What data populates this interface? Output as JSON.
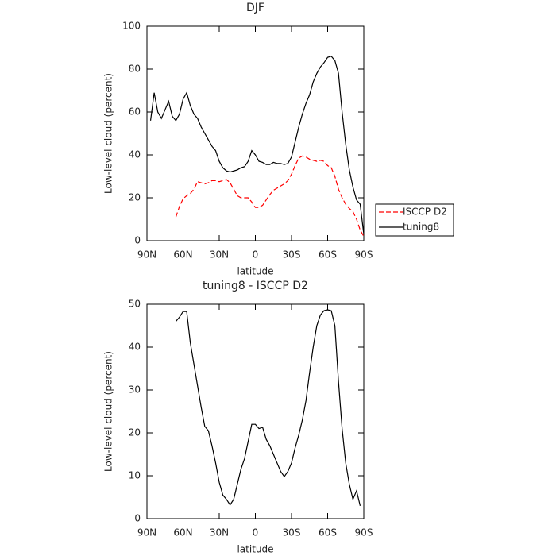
{
  "chart_data": [
    {
      "type": "line",
      "title": "DJF",
      "x_label": "latitude",
      "y_label": "Low-level cloud (percent)",
      "x": [
        87,
        84,
        81,
        78,
        75,
        72,
        69,
        66,
        63,
        60,
        57,
        54,
        51,
        48,
        45,
        42,
        39,
        36,
        33,
        30,
        27,
        24,
        21,
        18,
        15,
        12,
        9,
        6,
        3,
        0,
        -3,
        -6,
        -9,
        -12,
        -15,
        -18,
        -21,
        -24,
        -27,
        -30,
        -33,
        -36,
        -39,
        -42,
        -45,
        -48,
        -51,
        -54,
        -57,
        -60,
        -63,
        -66,
        -69,
        -72,
        -75,
        -78,
        -81,
        -84,
        -87,
        -90
      ],
      "series": [
        {
          "name": "ISCCP D2",
          "color": "#ff0000",
          "line_style": "dashed",
          "values": [
            null,
            null,
            null,
            null,
            null,
            null,
            null,
            11,
            16,
            19.5,
            21,
            22,
            24,
            27.5,
            27,
            26.5,
            27,
            28,
            28,
            27.5,
            28,
            28.5,
            27,
            24,
            21,
            20,
            20,
            20,
            18,
            15.5,
            15.5,
            16.5,
            19,
            21.5,
            23.5,
            24.5,
            25.5,
            26.5,
            28,
            31,
            35,
            38.5,
            39.5,
            39,
            38,
            37.5,
            37,
            37.5,
            37,
            35,
            34,
            30,
            24,
            20,
            17,
            15,
            13.5,
            10,
            5,
            2
          ]
        },
        {
          "name": "tuning8",
          "color": "#000000",
          "line_style": "solid",
          "values": [
            56,
            69,
            60,
            57,
            61,
            65,
            58,
            56,
            59,
            66,
            69,
            63,
            59,
            57,
            53,
            50,
            47,
            44,
            42,
            37,
            34,
            32.5,
            32,
            32.5,
            33,
            34,
            34.5,
            37,
            42,
            40,
            37,
            36.5,
            35.5,
            35.5,
            36.5,
            36,
            36,
            35.5,
            36,
            39,
            46,
            53,
            59,
            64,
            68,
            74,
            78,
            81,
            83,
            85.5,
            86,
            84,
            78,
            60,
            45,
            33,
            25,
            19,
            17,
            3
          ]
        }
      ],
      "xlim": [
        90,
        -90
      ],
      "xticks": [
        {
          "value": 90,
          "label": "90N"
        },
        {
          "value": 60,
          "label": "60N"
        },
        {
          "value": 30,
          "label": "30N"
        },
        0,
        {
          "value": -30,
          "label": "30S"
        },
        {
          "value": -60,
          "label": "60S"
        },
        {
          "value": -90,
          "label": "90S"
        }
      ],
      "ylim": [
        0,
        100
      ],
      "yticks": [
        0,
        20,
        40,
        60,
        80,
        100
      ],
      "grid": false,
      "legend": "outside-right"
    },
    {
      "type": "line",
      "title": "tuning8 - ISCCP D2",
      "x_label": "latitude",
      "y_label": "Low-level cloud (percent)",
      "x": [
        87,
        84,
        81,
        78,
        75,
        72,
        69,
        66,
        63,
        60,
        57,
        54,
        51,
        48,
        45,
        42,
        39,
        36,
        33,
        30,
        27,
        24,
        21,
        18,
        15,
        12,
        9,
        6,
        3,
        0,
        -3,
        -6,
        -9,
        -12,
        -15,
        -18,
        -21,
        -24,
        -27,
        -30,
        -33,
        -36,
        -39,
        -42,
        -45,
        -48,
        -51,
        -54,
        -57,
        -60,
        -63,
        -66,
        -69,
        -72,
        -75,
        -78,
        -81,
        -84,
        -87,
        -90
      ],
      "series": [
        {
          "color": "#000000",
          "line_style": "solid",
          "values": [
            null,
            null,
            null,
            null,
            null,
            null,
            null,
            46,
            47,
            48.3,
            48.3,
            41,
            36,
            31,
            26,
            21.5,
            20.5,
            17,
            13,
            8.5,
            5.5,
            4.5,
            3.2,
            4.5,
            8,
            11.5,
            14,
            18,
            22,
            22,
            21,
            21.3,
            18.5,
            17,
            15,
            13,
            11,
            9.8,
            11,
            13,
            16.5,
            19.5,
            23,
            27.5,
            34,
            40,
            45,
            47.5,
            48.5,
            48.7,
            48.5,
            45,
            32,
            21,
            13,
            8,
            4.5,
            6.5,
            3,
            null
          ]
        }
      ],
      "xlim": [
        90,
        -90
      ],
      "xticks": [
        {
          "value": 90,
          "label": "90N"
        },
        {
          "value": 60,
          "label": "60N"
        },
        {
          "value": 30,
          "label": "30N"
        },
        0,
        {
          "value": -30,
          "label": "30S"
        },
        {
          "value": -60,
          "label": "60S"
        },
        {
          "value": -90,
          "label": "90S"
        }
      ],
      "ylim": [
        0,
        50
      ],
      "yticks": [
        0,
        10,
        20,
        30,
        40,
        50
      ],
      "grid": false
    }
  ]
}
